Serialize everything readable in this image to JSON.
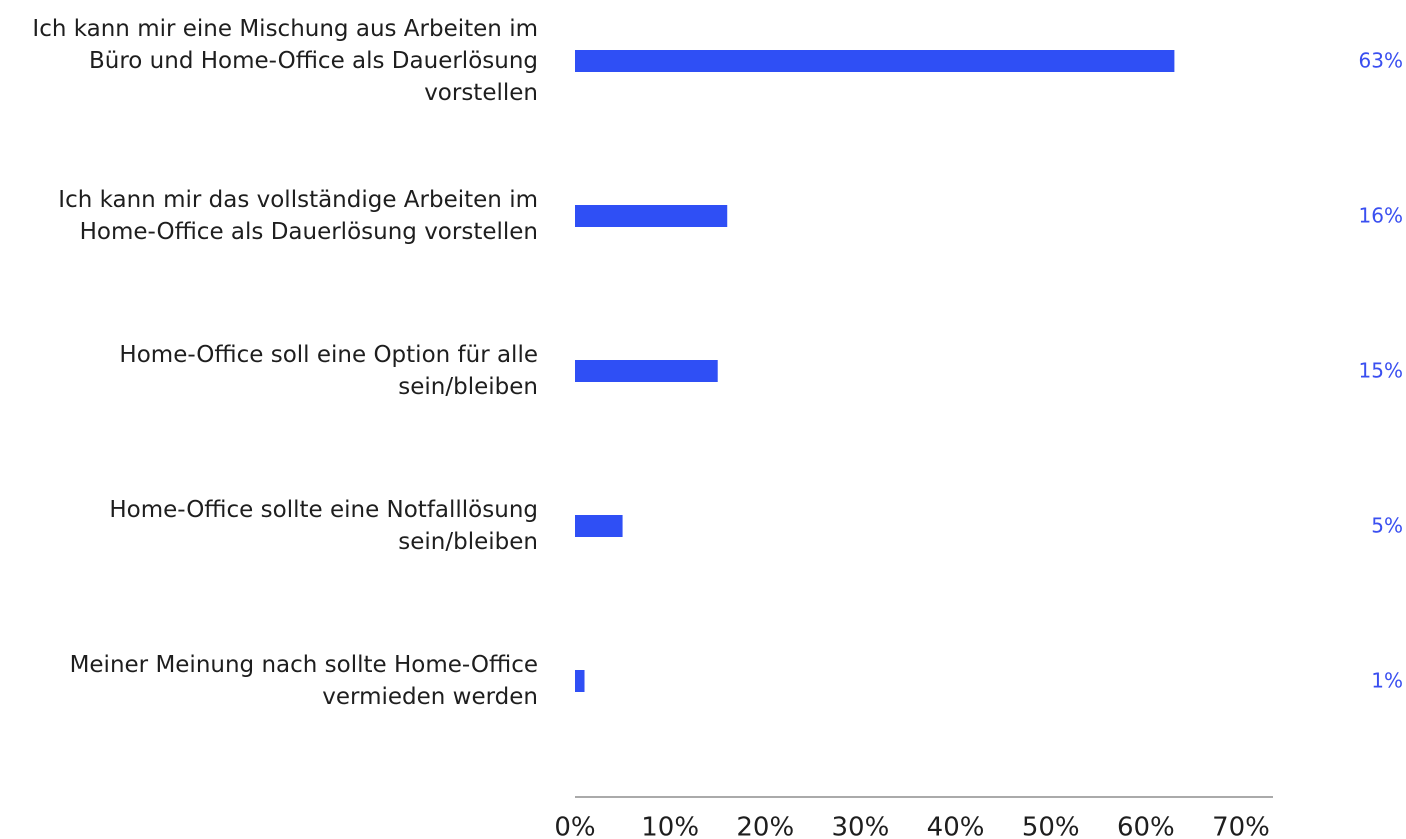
{
  "chart_data": {
    "type": "hbar",
    "categories": [
      "Ich kann mir eine Mischung aus Arbeiten im Büro und Home-Office als Dauerlösung vorstellen",
      "Ich kann mir das vollständige Arbeiten im Home-Office als Dauerlösung vorstellen",
      "Home-Office soll eine Option für alle sein/bleiben",
      "Home-Office sollte eine Notfalllösung sein/bleiben",
      "Meiner Meinung nach sollte Home-Office vermieden werden"
    ],
    "values": [
      63,
      16,
      15,
      5,
      1
    ],
    "value_labels": [
      "63%",
      "16%",
      "15%",
      "5%",
      "1%"
    ],
    "color": "#2f4ff5",
    "xlim": [
      0,
      70
    ],
    "xticks": [
      {
        "value": 0,
        "label": "0%"
      },
      {
        "value": 10,
        "label": "10%"
      },
      {
        "value": 20,
        "label": "20%"
      },
      {
        "value": 30,
        "label": "30%"
      },
      {
        "value": 40,
        "label": "40%"
      },
      {
        "value": 50,
        "label": "50%"
      },
      {
        "value": 60,
        "label": "60%"
      },
      {
        "value": 70,
        "label": "70%"
      }
    ]
  }
}
